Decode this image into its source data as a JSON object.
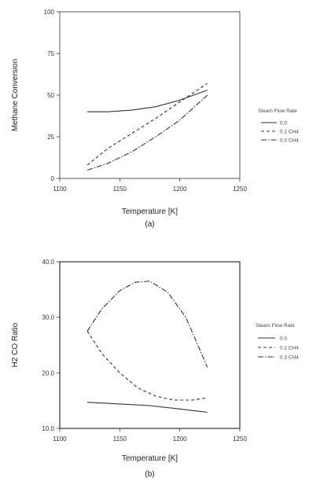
{
  "chart_data": [
    {
      "type": "line",
      "panel_label": "(a)",
      "xlabel": "Temperature [K]",
      "ylabel": "Methane Conversion",
      "xlim": [
        1100,
        1250
      ],
      "ylim": [
        0,
        100
      ],
      "xticks": [
        "1100",
        "1150",
        "1200",
        "1250"
      ],
      "yticks": [
        "0",
        "25",
        "50",
        "75",
        "100"
      ],
      "grid": false,
      "legend_title": "Steam Flow Rate",
      "legend_placement": "right",
      "series": [
        {
          "name": "0.0",
          "dash": "solid",
          "x": [
            1123,
            1140,
            1160,
            1180,
            1200,
            1223
          ],
          "y": [
            40,
            40,
            41,
            43,
            47,
            53
          ]
        },
        {
          "name": "0.1 CH4",
          "dash": "dashed",
          "x": [
            1123,
            1140,
            1160,
            1180,
            1200,
            1223
          ],
          "y": [
            8,
            18,
            27,
            36,
            46,
            57
          ]
        },
        {
          "name": "0.3 CH4",
          "dash": "dashdot",
          "x": [
            1123,
            1140,
            1160,
            1180,
            1200,
            1223
          ],
          "y": [
            5,
            9,
            16,
            25,
            35,
            50
          ]
        }
      ]
    },
    {
      "type": "line",
      "panel_label": "(b)",
      "xlabel": "Temperature [K]",
      "ylabel": "H2 CO Ratio",
      "xlim": [
        1100,
        1250
      ],
      "ylim": [
        10,
        40
      ],
      "xticks": [
        "1100",
        "1150",
        "1200",
        "1250"
      ],
      "yticks": [
        "10.0",
        "20.0",
        "30.0",
        "40.0"
      ],
      "grid": false,
      "legend_title": "Steam Flow Rate",
      "legend_placement": "right",
      "series": [
        {
          "name": "0.0",
          "dash": "solid",
          "x": [
            1123,
            1150,
            1175,
            1200,
            1223
          ],
          "y": [
            14.7,
            14.4,
            14.1,
            13.5,
            12.9
          ]
        },
        {
          "name": "0.1 CH4",
          "dash": "dashed",
          "x": [
            1123,
            1135,
            1150,
            1165,
            1180,
            1195,
            1210,
            1223
          ],
          "y": [
            27.5,
            23.5,
            20.0,
            17.3,
            15.8,
            15.1,
            15.1,
            15.5
          ]
        },
        {
          "name": "0.3 CH4",
          "dash": "dashdot",
          "x": [
            1123,
            1135,
            1150,
            1163,
            1175,
            1190,
            1205,
            1215,
            1223
          ],
          "y": [
            27.5,
            31.5,
            34.8,
            36.3,
            36.5,
            34.5,
            30.0,
            25.0,
            21.0
          ]
        }
      ]
    }
  ]
}
